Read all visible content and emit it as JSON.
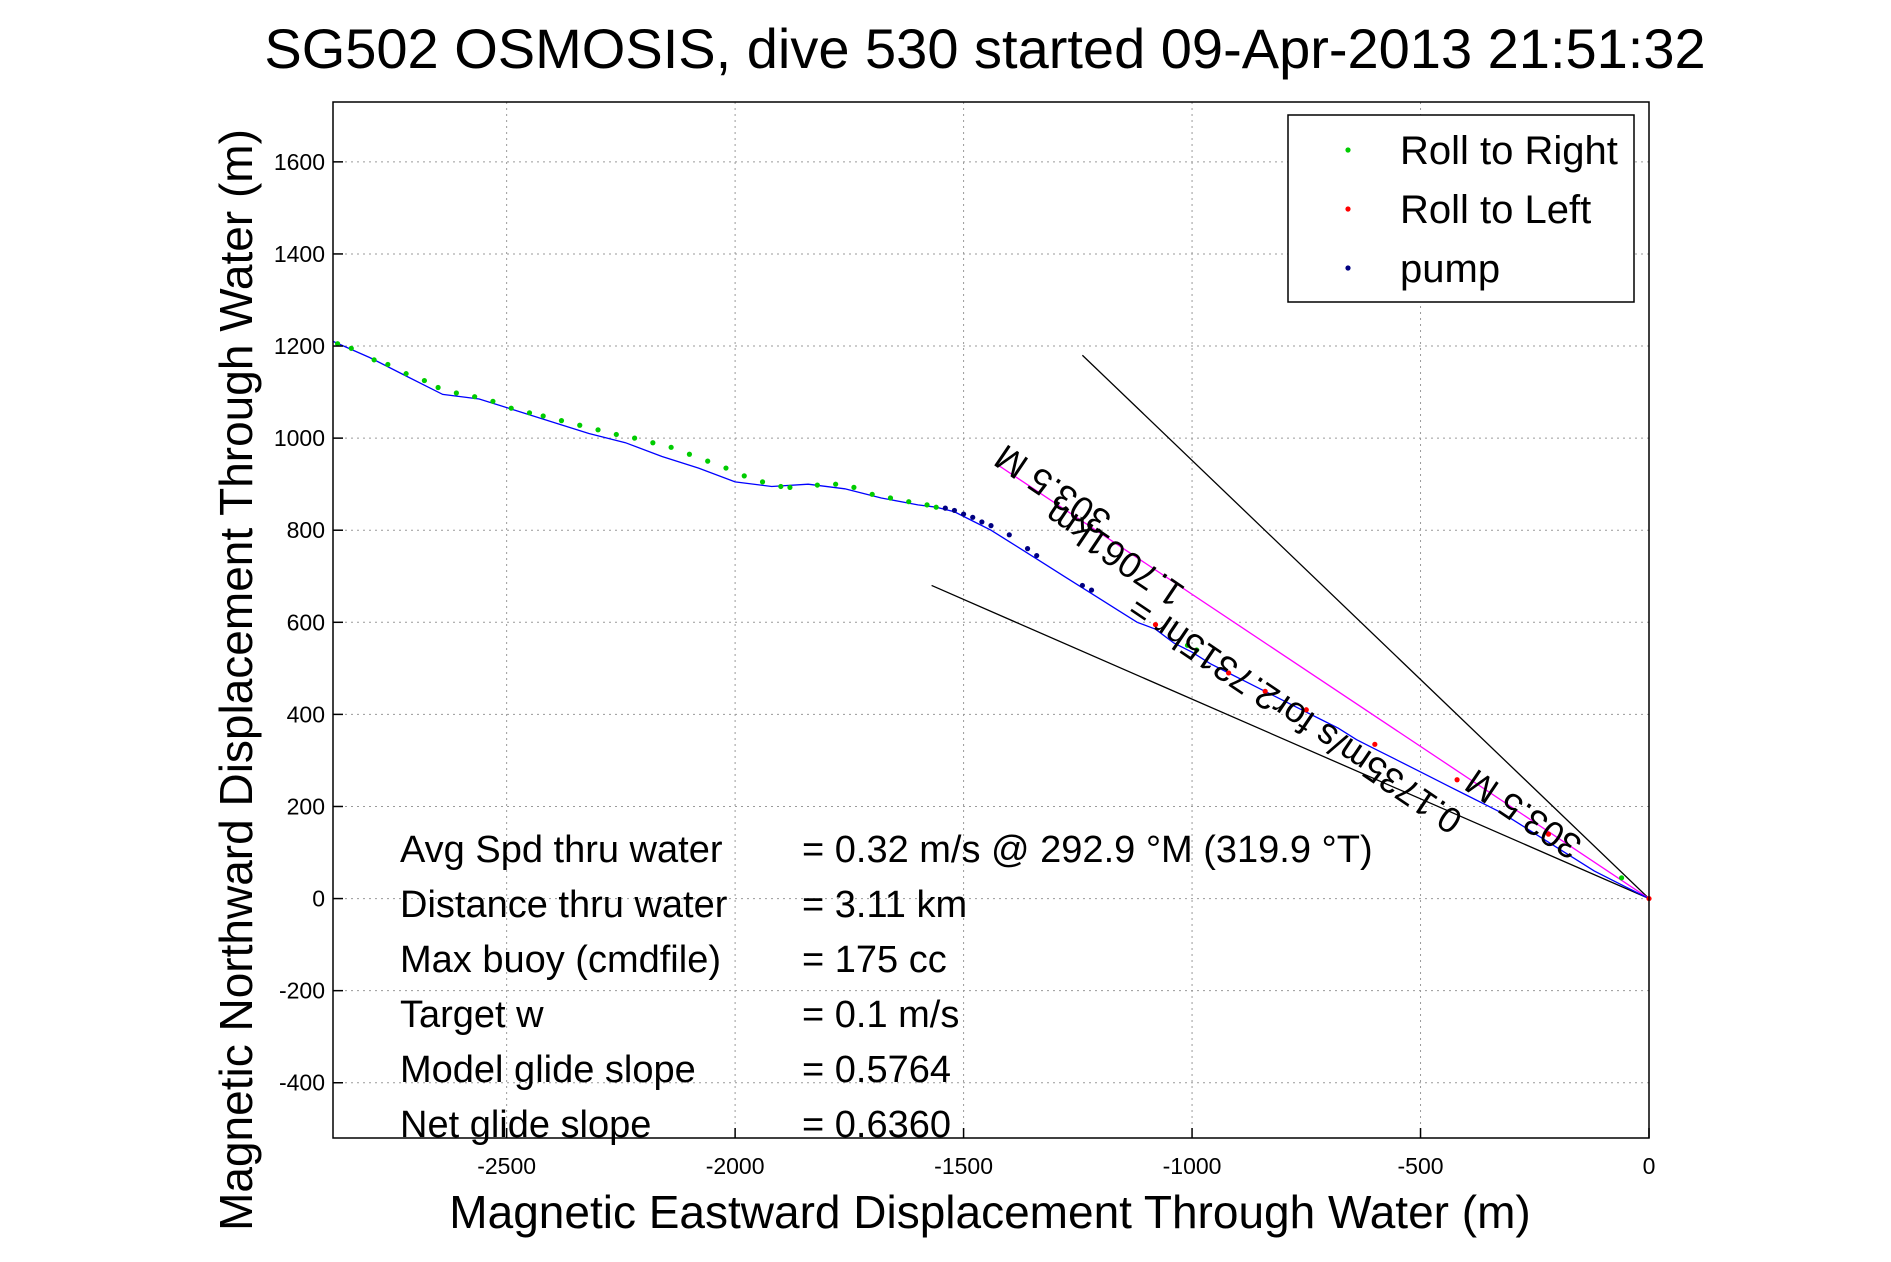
{
  "chart_data": {
    "type": "scatter",
    "title": "SG502 OSMOSIS, dive 530 started 09-Apr-2013 21:51:32",
    "xlabel": "Magnetic Eastward Displacement Through Water (m)",
    "ylabel": "Magnetic Northward Displacement Through Water (m)",
    "xlim": [
      -2880,
      0
    ],
    "ylim": [
      -520,
      1730
    ],
    "xticks": [
      "-2500",
      "-2000",
      "-1500",
      "-1000",
      "-500",
      "0"
    ],
    "yticks": [
      "-400",
      "-200",
      "0",
      "200",
      "400",
      "600",
      "800",
      "1000",
      "1200",
      "1400",
      "1600"
    ],
    "xtick_values": [
      -2500,
      -2000,
      -1500,
      -1000,
      -500,
      0
    ],
    "ytick_values": [
      -400,
      -200,
      0,
      200,
      400,
      600,
      800,
      1000,
      1200,
      1400,
      1600
    ],
    "grid": true,
    "legend_position": "top-right",
    "colors": {
      "track": "#0000ff",
      "roll_right": "#00cc00",
      "roll_left": "#ff0000",
      "pump": "#000080",
      "heading": "#ff00ff",
      "envelope": "#000000"
    },
    "legend": [
      "Roll to Right",
      "Roll to Left",
      "pump"
    ],
    "track": {
      "x": [
        -2880,
        -2800,
        -2720,
        -2640,
        -2560,
        -2480,
        -2400,
        -2320,
        -2240,
        -2160,
        -2080,
        -2000,
        -1920,
        -1840,
        -1760,
        -1680,
        -1600,
        -1560,
        -1520,
        -1480,
        -1440,
        -1400,
        -1360,
        -1320,
        -1280,
        -1240,
        -1200,
        -1160,
        -1120,
        -1080,
        -1040,
        -1000,
        -960,
        -920,
        -880,
        -840,
        -800,
        -760,
        -720,
        -680,
        -640,
        -600,
        -560,
        -520,
        -480,
        -440,
        -400,
        -360,
        -320,
        -280,
        -240,
        -200,
        -160,
        -120,
        -80,
        -40,
        0
      ],
      "y": [
        1210,
        1175,
        1135,
        1095,
        1085,
        1060,
        1035,
        1010,
        990,
        960,
        935,
        905,
        895,
        900,
        890,
        870,
        855,
        850,
        840,
        820,
        800,
        775,
        750,
        725,
        700,
        675,
        650,
        625,
        600,
        585,
        555,
        535,
        510,
        490,
        470,
        450,
        430,
        410,
        390,
        370,
        345,
        325,
        305,
        285,
        265,
        245,
        225,
        205,
        185,
        160,
        135,
        110,
        85,
        60,
        40,
        20,
        0
      ]
    },
    "series": [
      {
        "name": "Roll to Right",
        "x": [
          -2870,
          -2840,
          -2790,
          -2760,
          -2720,
          -2680,
          -2650,
          -2610,
          -2570,
          -2530,
          -2490,
          -2450,
          -2420,
          -2380,
          -2340,
          -2300,
          -2260,
          -2220,
          -2180,
          -2140,
          -2100,
          -2060,
          -2020,
          -1980,
          -1940,
          -1900,
          -1880,
          -1820,
          -1780,
          -1740,
          -1700,
          -1660,
          -1620,
          -1580,
          -1560,
          -1010,
          -990,
          -60
        ],
        "y": [
          1205,
          1195,
          1170,
          1160,
          1140,
          1125,
          1110,
          1098,
          1090,
          1080,
          1065,
          1055,
          1048,
          1038,
          1028,
          1018,
          1008,
          1000,
          990,
          980,
          965,
          950,
          935,
          918,
          905,
          895,
          893,
          898,
          900,
          893,
          878,
          870,
          862,
          855,
          850,
          550,
          540,
          45
        ]
      },
      {
        "name": "Roll to Left",
        "x": [
          -1080,
          -920,
          -840,
          -750,
          -600,
          -420,
          -220,
          0
        ],
        "y": [
          595,
          490,
          450,
          410,
          335,
          258,
          140,
          0
        ]
      },
      {
        "name": "pump",
        "x": [
          -1540,
          -1520,
          -1500,
          -1480,
          -1460,
          -1440,
          -1400,
          -1360,
          -1340,
          -1240,
          -1220
        ],
        "y": [
          848,
          843,
          835,
          828,
          818,
          810,
          790,
          760,
          745,
          680,
          670
        ]
      }
    ],
    "heading_line": {
      "x": [
        -1430,
        0
      ],
      "y": [
        945,
        0
      ]
    },
    "envelope_lines": [
      {
        "x": [
          -1240,
          0
        ],
        "y": [
          1180,
          0
        ]
      },
      {
        "x": [
          -1570,
          0
        ],
        "y": [
          680,
          0
        ]
      }
    ],
    "annotations": [
      {
        "text": "303.5 M",
        "x": -1290,
        "y": 910,
        "angle": 34
      },
      {
        "text": "1.7061km",
        "x": -1155,
        "y": 770,
        "angle": 34
      },
      {
        "text": "0.1735m/s for2.7315hr =",
        "x": -760,
        "y": 420,
        "angle": 34
      },
      {
        "text": "303.5 M",
        "x": -260,
        "y": 205,
        "angle": 34
      }
    ],
    "stats": {
      "labels": [
        "Avg Spd thru water",
        "Distance thru water",
        "Max buoy (cmdfile)",
        "Target w",
        "Model glide slope",
        "Net glide slope"
      ],
      "values": [
        "=  0.32 m/s @ 292.9 °M (319.9 °T)",
        "=  3.11 km",
        "= 175 cc",
        "= 0.1 m/s",
        "= 0.5764",
        "= 0.6360"
      ]
    }
  }
}
